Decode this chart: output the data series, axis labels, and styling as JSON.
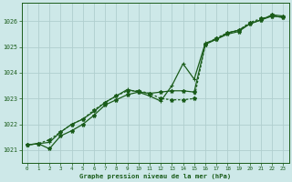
{
  "title": "Graphe pression niveau de la mer (hPa)",
  "background_color": "#cde8e8",
  "grid_color": "#b0cece",
  "line_color": "#1a5c1a",
  "xlim": [
    -0.5,
    23.5
  ],
  "ylim": [
    1020.5,
    1026.7
  ],
  "xticks": [
    0,
    1,
    2,
    3,
    4,
    5,
    6,
    7,
    8,
    9,
    10,
    11,
    12,
    13,
    14,
    15,
    16,
    17,
    18,
    19,
    20,
    21,
    22,
    23
  ],
  "yticks": [
    1021,
    1022,
    1023,
    1024,
    1025,
    1026
  ],
  "line1_x": [
    0,
    1,
    2,
    3,
    4,
    5,
    6,
    7,
    8,
    9,
    10,
    11,
    12,
    13,
    14,
    15,
    16,
    17,
    18,
    19,
    20,
    21,
    22,
    23
  ],
  "line1_y": [
    1021.2,
    1021.25,
    1021.05,
    1021.55,
    1021.75,
    1022.0,
    1022.35,
    1022.75,
    1022.95,
    1023.15,
    1023.25,
    1023.2,
    1023.25,
    1023.3,
    1023.3,
    1023.25,
    1025.1,
    1025.3,
    1025.5,
    1025.6,
    1025.9,
    1026.05,
    1026.25,
    1026.2
  ],
  "line2_x": [
    0,
    1,
    2,
    3,
    4,
    5,
    6,
    7,
    8,
    9,
    10,
    11,
    12,
    13,
    14,
    15,
    16,
    17,
    18,
    19,
    20,
    21,
    22,
    23
  ],
  "line2_y": [
    1021.2,
    1021.25,
    1021.4,
    1021.7,
    1022.0,
    1022.2,
    1022.55,
    1022.85,
    1023.1,
    1023.3,
    1023.3,
    1023.2,
    1023.0,
    1022.95,
    1022.95,
    1023.0,
    1025.1,
    1025.35,
    1025.55,
    1025.65,
    1025.95,
    1026.1,
    1026.2,
    1026.15
  ],
  "line3_x": [
    0,
    1,
    2,
    3,
    4,
    5,
    6,
    7,
    8,
    9,
    10,
    11,
    12,
    13,
    14,
    15,
    16,
    17,
    18,
    19,
    20,
    21,
    22,
    23
  ],
  "line3_y": [
    1021.2,
    1021.25,
    1021.3,
    1021.7,
    1022.0,
    1022.2,
    1022.5,
    1022.85,
    1023.1,
    1023.35,
    1023.25,
    1023.1,
    1022.9,
    1023.5,
    1024.35,
    1023.75,
    1025.15,
    1025.3,
    1025.55,
    1025.65,
    1025.9,
    1026.05,
    1026.2,
    1026.15
  ]
}
